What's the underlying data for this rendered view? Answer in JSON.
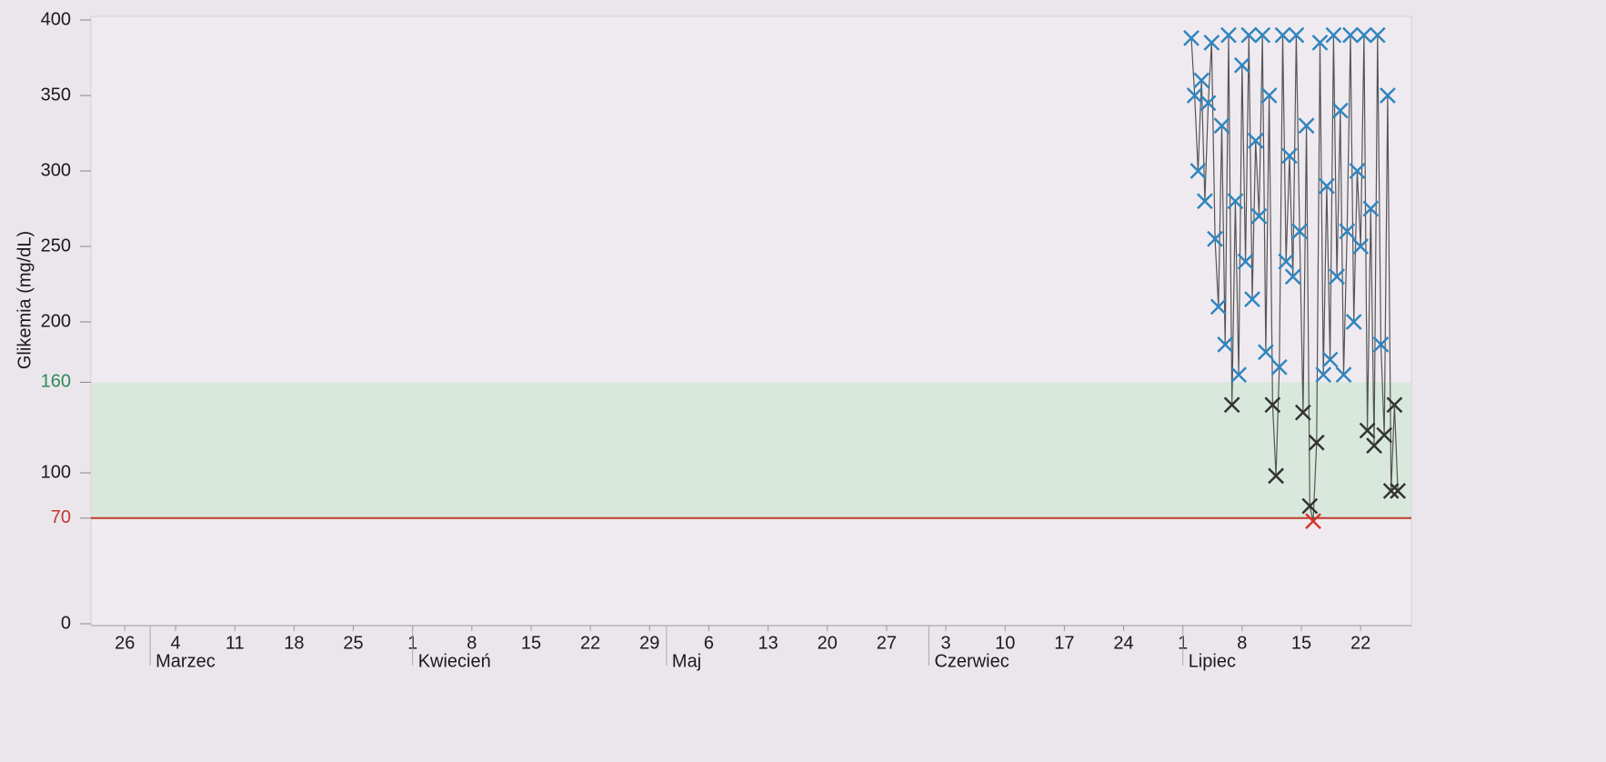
{
  "chart_data": {
    "type": "scatter",
    "y_label": "Glikemia (mg/dL)",
    "ylim": [
      0,
      400
    ],
    "yticks": [
      0,
      70,
      100,
      160,
      200,
      250,
      300,
      350,
      400
    ],
    "xlim": [
      53,
      209
    ],
    "xticks": [
      {
        "value": 57,
        "label": "26"
      },
      {
        "value": 63,
        "label": "4"
      },
      {
        "value": 70,
        "label": "11"
      },
      {
        "value": 77,
        "label": "18"
      },
      {
        "value": 84,
        "label": "25"
      },
      {
        "value": 91,
        "label": "1"
      },
      {
        "value": 98,
        "label": "8"
      },
      {
        "value": 105,
        "label": "15"
      },
      {
        "value": 112,
        "label": "22"
      },
      {
        "value": 119,
        "label": "29"
      },
      {
        "value": 126,
        "label": "6"
      },
      {
        "value": 133,
        "label": "13"
      },
      {
        "value": 140,
        "label": "20"
      },
      {
        "value": 147,
        "label": "27"
      },
      {
        "value": 154,
        "label": "3"
      },
      {
        "value": 161,
        "label": "10"
      },
      {
        "value": 168,
        "label": "17"
      },
      {
        "value": 175,
        "label": "24"
      },
      {
        "value": 182,
        "label": "1"
      },
      {
        "value": 189,
        "label": "8"
      },
      {
        "value": 196,
        "label": "15"
      },
      {
        "value": 203,
        "label": "22"
      }
    ],
    "months": [
      {
        "value": 60,
        "label": "Marzec"
      },
      {
        "value": 91,
        "label": "Kwiecień"
      },
      {
        "value": 121,
        "label": "Maj"
      },
      {
        "value": 152,
        "label": "Czerwiec"
      },
      {
        "value": 182,
        "label": "Lipiec"
      }
    ],
    "target_range": {
      "from": 70,
      "to": 160,
      "color": "#d8e8dc"
    },
    "low_line": {
      "value": 70,
      "color": "#c0392b"
    },
    "tick_colors": {
      "70": "#c0392b",
      "160": "#2e8b57"
    },
    "line_color": "#555555",
    "marker_colors": {
      "high": "#2f86c0",
      "in_range": "#333333",
      "low": "#d9342b"
    },
    "x": [
      183,
      183.4,
      183.8,
      184.2,
      184.6,
      185,
      185.4,
      185.8,
      186.2,
      186.6,
      187,
      187.4,
      187.8,
      188.2,
      188.6,
      189,
      189.4,
      189.8,
      190.2,
      190.6,
      191,
      191.4,
      191.8,
      192.2,
      192.6,
      193,
      193.4,
      193.8,
      194.2,
      194.6,
      195,
      195.4,
      195.8,
      196.2,
      196.6,
      197,
      197.4,
      197.8,
      198.2,
      198.6,
      199,
      199.4,
      199.8,
      200.2,
      200.6,
      201,
      201.4,
      201.8,
      202.2,
      202.6,
      203,
      203.4,
      203.8,
      204.2,
      204.6,
      205,
      205.4,
      205.8,
      206.2,
      206.6,
      207,
      207.4
    ],
    "values": [
      388,
      350,
      300,
      360,
      280,
      345,
      385,
      255,
      210,
      330,
      185,
      390,
      145,
      280,
      165,
      370,
      240,
      390,
      215,
      320,
      270,
      390,
      180,
      350,
      145,
      98,
      170,
      390,
      240,
      310,
      230,
      390,
      260,
      140,
      330,
      78,
      68,
      120,
      385,
      165,
      290,
      175,
      390,
      230,
      340,
      165,
      260,
      390,
      200,
      300,
      250,
      390,
      128,
      275,
      118,
      390,
      185,
      125,
      350,
      88,
      145,
      88
    ]
  }
}
